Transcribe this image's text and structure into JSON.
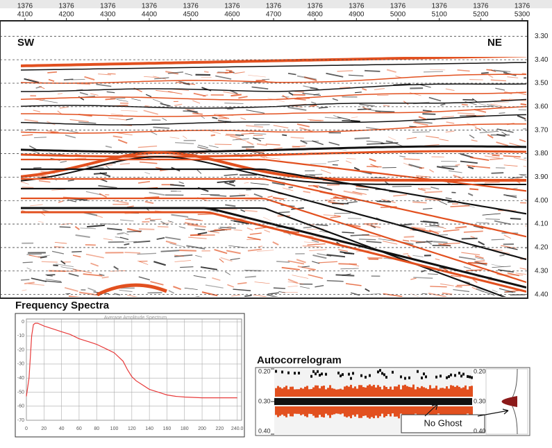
{
  "seismic": {
    "line_number": "1376",
    "trace_ticks": [
      4100,
      4200,
      4300,
      4400,
      4500,
      4600,
      4700,
      4800,
      4900,
      5000,
      5100,
      5200,
      5300
    ],
    "tracelim": [
      4090,
      5310
    ],
    "time_ticks": [
      {
        "value": 3.3,
        "label": "3.30"
      },
      {
        "value": 3.4,
        "label": "3.40"
      },
      {
        "value": 3.5,
        "label": "3.50"
      },
      {
        "value": 3.6,
        "label": "3.60"
      },
      {
        "value": 3.7,
        "label": "3.70"
      },
      {
        "value": 3.8,
        "label": "3.80"
      },
      {
        "value": 3.9,
        "label": "3.90"
      },
      {
        "value": 4.0,
        "label": "4.00"
      },
      {
        "value": 4.1,
        "label": "4.10"
      },
      {
        "value": 4.2,
        "label": "4.20"
      },
      {
        "value": 4.3,
        "label": "4.30"
      },
      {
        "value": 4.4,
        "label": "4.40"
      }
    ],
    "timelim": [
      3.24,
      4.41
    ],
    "left_label": "SW",
    "right_label": "NE"
  },
  "frequency_spectra": {
    "title": "Frequency Spectra",
    "subtitle": "Average Amplitude Spectrum",
    "color": "#e83a3a",
    "x": [
      0,
      3,
      6,
      8,
      10,
      13,
      20,
      30,
      40,
      50,
      60,
      70,
      80,
      90,
      100,
      110,
      115,
      120,
      125,
      130,
      140,
      150,
      160,
      170,
      180,
      200,
      220,
      240
    ],
    "values": [
      -53,
      -40,
      -10,
      -2,
      -1,
      -1,
      -3,
      -5,
      -7,
      -9,
      -12,
      -14,
      -16,
      -19,
      -22,
      -28,
      -34,
      -39,
      -42,
      -44,
      -48,
      -50,
      -52,
      -53,
      -53.5,
      -54,
      -54,
      -54
    ],
    "xlim": [
      0,
      245
    ],
    "ylim": [
      -70,
      2
    ],
    "xticks": [
      0,
      20,
      40,
      60,
      80,
      100,
      120,
      140,
      160,
      180,
      200,
      220,
      {
        "value": 240,
        "label": "240.0"
      }
    ],
    "yticks": [
      0,
      -10,
      -20,
      -30,
      -40,
      -50,
      -60,
      -70
    ]
  },
  "autocorrelogram": {
    "title": "Autocorrelogram",
    "time_ticks": [
      {
        "value": 0.2,
        "label": "0.20"
      },
      {
        "value": 0.3,
        "label": "0.30"
      },
      {
        "value": 0.4,
        "label": "0.40"
      }
    ],
    "timelim": [
      0.2,
      0.4
    ],
    "annotation": "No Ghost"
  }
}
